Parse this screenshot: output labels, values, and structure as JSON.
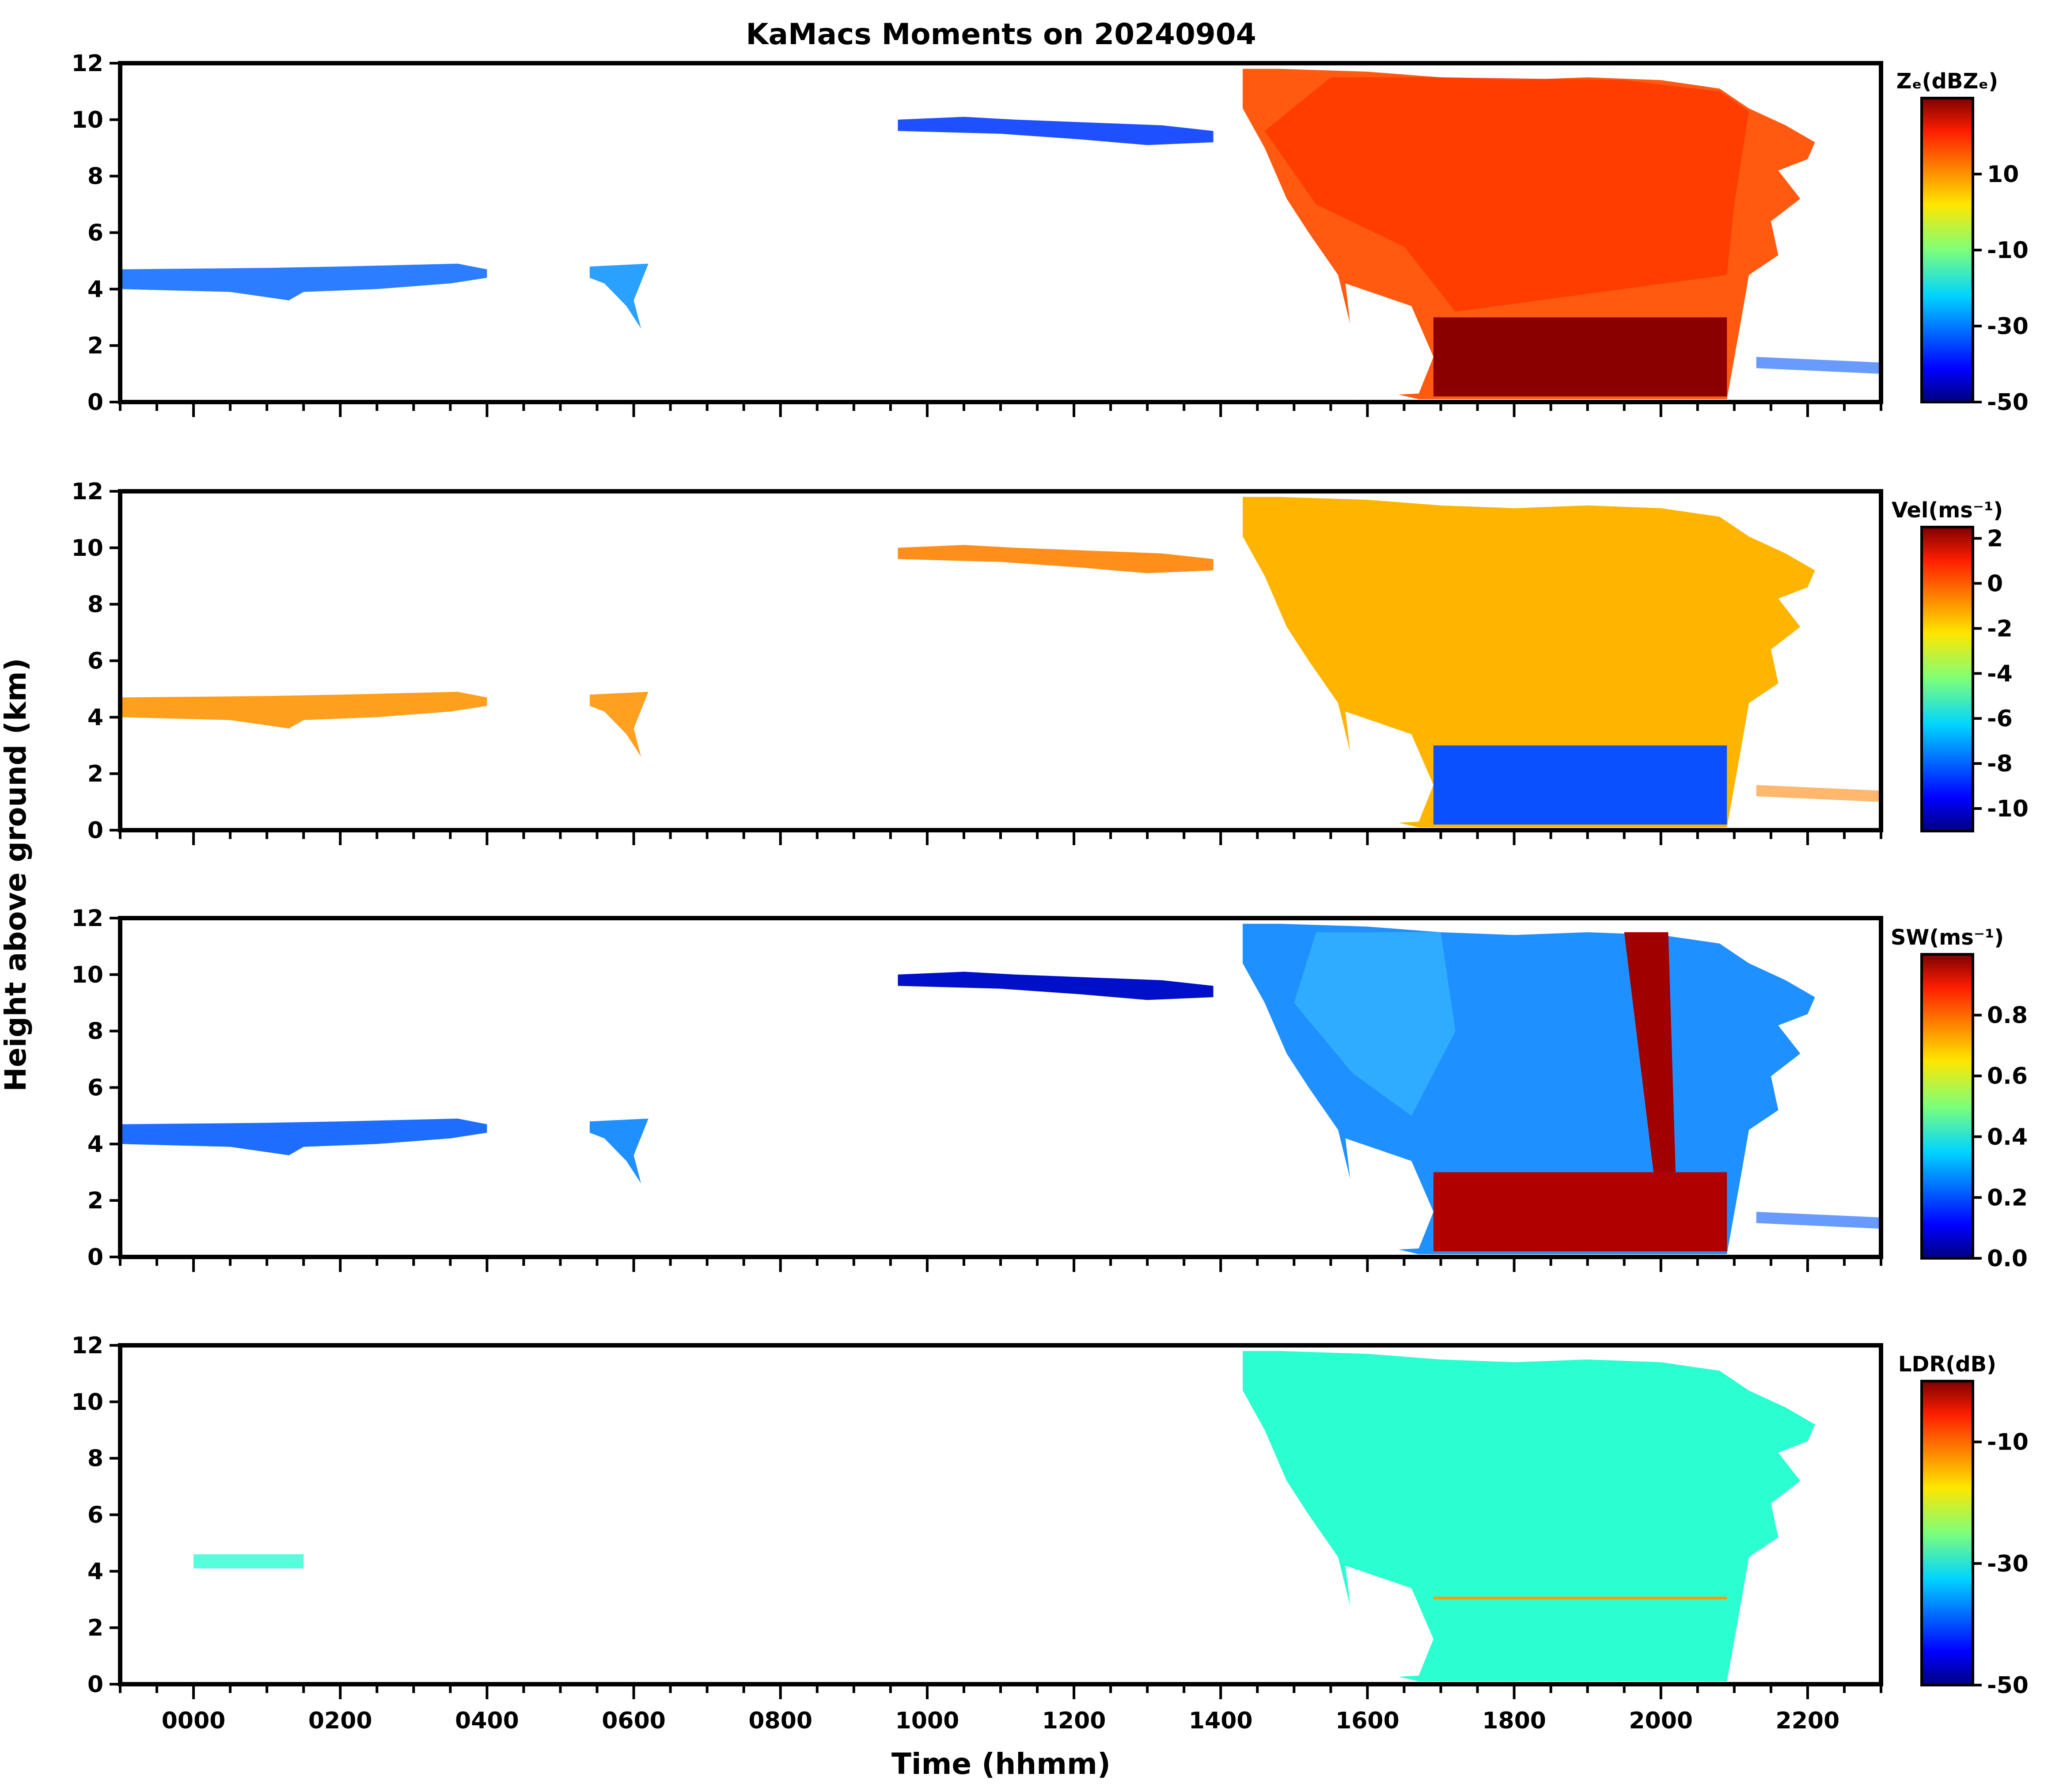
{
  "chart_data": {
    "type": "heatmap",
    "title": "KaMacs Moments on 20240904",
    "xlabel": "Time (hhmm)",
    "ylabel": "Height above ground (km)",
    "x_ticks": [
      "0000",
      "0200",
      "0400",
      "0600",
      "0800",
      "1000",
      "1200",
      "1400",
      "1600",
      "1800",
      "2000",
      "2200"
    ],
    "x_range_hours": [
      -1.0,
      23.0
    ],
    "y_range_km": [
      0,
      12
    ],
    "y_ticks": [
      "0",
      "2",
      "4",
      "6",
      "8",
      "10",
      "12"
    ],
    "panels": [
      {
        "name": "Ze",
        "colorbar_label": "Zₑ(dBZₑ)",
        "colorbar_ticks": [
          "10",
          "-10",
          "-30",
          "-50"
        ],
        "colorbar_tick_values": [
          10,
          -10,
          -30,
          -50
        ],
        "colorbar_range": [
          -50,
          30
        ]
      },
      {
        "name": "Vel",
        "colorbar_label": "Vel(ms⁻¹)",
        "colorbar_ticks": [
          "2",
          "0",
          "-2",
          "-4",
          "-6",
          "-8",
          "-10"
        ],
        "colorbar_tick_values": [
          2,
          0,
          -2,
          -4,
          -6,
          -8,
          -10
        ],
        "colorbar_range": [
          -11,
          2.5
        ]
      },
      {
        "name": "SW",
        "colorbar_label": "SW(ms⁻¹)",
        "colorbar_ticks": [
          "0.8",
          "0.6",
          "0.4",
          "0.2",
          "0.0"
        ],
        "colorbar_tick_values": [
          0.8,
          0.6,
          0.4,
          0.2,
          0.0
        ],
        "colorbar_range": [
          0.0,
          1.0
        ]
      },
      {
        "name": "LDR",
        "colorbar_label": "LDR(dB)",
        "colorbar_ticks": [
          "-10",
          "-30",
          "-50"
        ],
        "colorbar_tick_values": [
          -10,
          -30,
          -50
        ],
        "colorbar_range": [
          -50,
          0
        ]
      }
    ]
  }
}
